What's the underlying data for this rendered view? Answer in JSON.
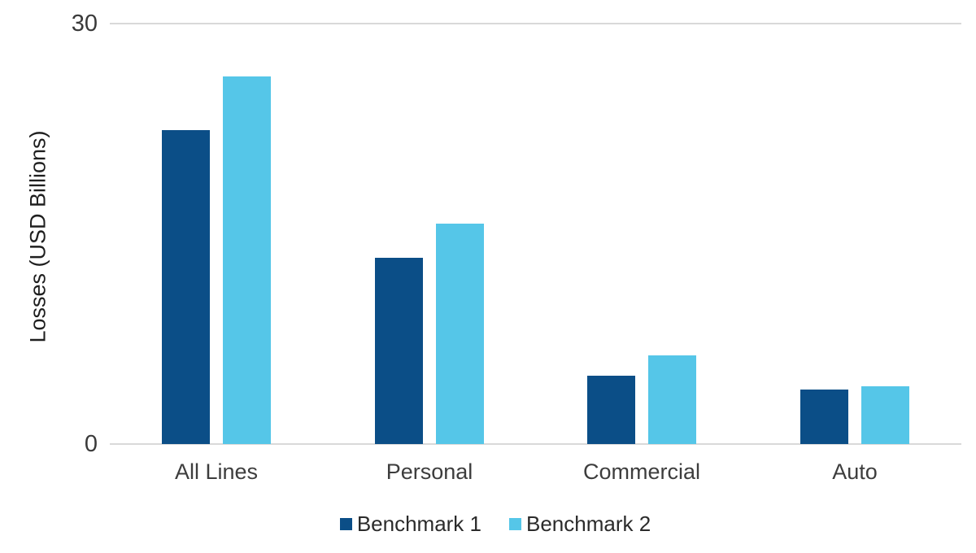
{
  "chart_data": {
    "type": "bar",
    "title": "",
    "xlabel": "",
    "ylabel": "Losses (USD Billions)",
    "ylim": [
      0,
      30
    ],
    "ytick_labels": [
      "30",
      "0"
    ],
    "grid": "horizontal, only at 0 and 30",
    "grid_color": "#d9d9d9",
    "legend_position": "bottom-center",
    "categories": [
      "All Lines",
      "Personal",
      "Commercial",
      "Auto"
    ],
    "series": [
      {
        "name": "Benchmark 1",
        "color": "#0b4e87",
        "values": [
          22.4,
          13.3,
          4.9,
          3.9
        ]
      },
      {
        "name": "Benchmark 2",
        "color": "#55c6e8",
        "values": [
          26.2,
          15.7,
          6.3,
          4.1
        ]
      }
    ]
  }
}
